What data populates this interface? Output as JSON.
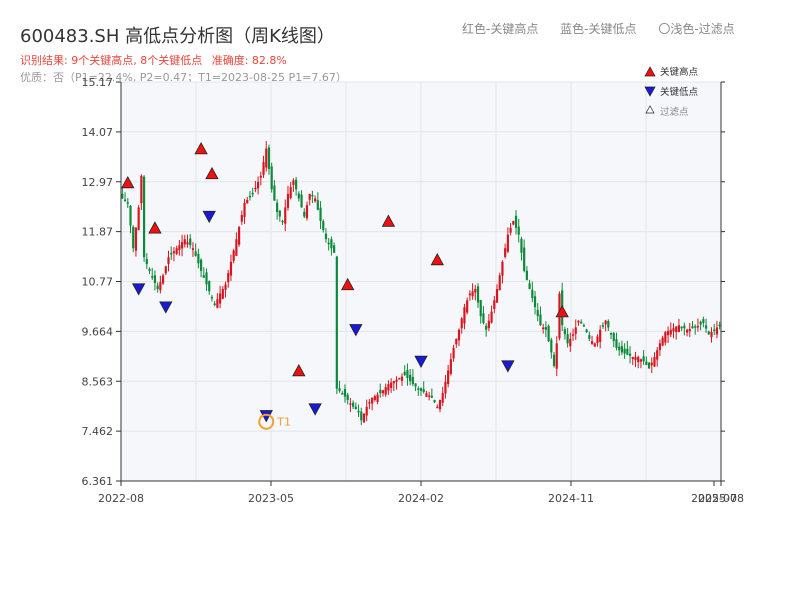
{
  "header": {
    "title": "600483.SH 高低点分析图（周K线图）",
    "legend_high": "红色-关键高点",
    "legend_low": "蓝色-关键低点",
    "legend_filter": "〇浅色-过滤点",
    "result": "识别结果: 9个关键高点, 8个关键低点",
    "accuracy": "准确度: 82.8%",
    "quality": "优质：否（P1=22.4%, P2=0.47；T1=2023-08-25 P1=7.67）"
  },
  "colors": {
    "up": "#d9161f",
    "down": "#0c8a3a",
    "high_marker": "#ee1111",
    "low_marker": "#1a1ad6",
    "annotation": "#f0a030",
    "plot_bg": "#f5f7fa",
    "grid": "#e2e6ea"
  },
  "chart_data": {
    "type": "candlestick",
    "ylim": [
      6.361,
      15.17
    ],
    "yticks": [
      "15.17",
      "14.07",
      "12.97",
      "11.87",
      "10.77",
      "9.664",
      "8.563",
      "7.462",
      "6.361"
    ],
    "xticks": [
      "2022-08",
      "2023-05",
      "2024-02",
      "2024-11",
      "2025-07",
      "2025-08"
    ],
    "xrange": [
      "2022-08",
      "2025-08"
    ],
    "inner_legend": [
      "关键高点",
      "关键低点",
      "过滤点"
    ],
    "annotation_label": "T1",
    "close_path": [
      [
        0,
        12.6
      ],
      [
        2,
        12.5
      ],
      [
        4,
        11.5
      ],
      [
        6,
        12.4
      ],
      [
        7,
        13.1
      ],
      [
        8,
        11.3
      ],
      [
        10,
        11.0
      ],
      [
        13,
        10.6
      ],
      [
        15,
        10.9
      ],
      [
        17,
        11.3
      ],
      [
        20,
        11.5
      ],
      [
        23,
        11.7
      ],
      [
        26,
        11.5
      ],
      [
        29,
        11.0
      ],
      [
        31,
        10.7
      ],
      [
        33,
        10.4
      ],
      [
        34,
        10.25
      ],
      [
        36,
        10.5
      ],
      [
        38,
        10.7
      ],
      [
        40,
        11.2
      ],
      [
        42,
        11.7
      ],
      [
        45,
        12.5
      ],
      [
        48,
        12.7
      ],
      [
        51,
        13.1
      ],
      [
        53,
        13.7
      ],
      [
        55,
        12.8
      ],
      [
        57,
        12.3
      ],
      [
        59,
        12.1
      ],
      [
        61,
        12.7
      ],
      [
        63,
        13.0
      ],
      [
        65,
        12.6
      ],
      [
        67,
        12.2
      ],
      [
        69,
        12.7
      ],
      [
        71,
        12.6
      ],
      [
        73,
        12.1
      ],
      [
        75,
        11.7
      ],
      [
        77,
        11.5
      ],
      [
        78,
        11.4
      ],
      [
        79,
        8.4
      ],
      [
        81,
        8.3
      ],
      [
        83,
        8.15
      ],
      [
        85,
        8.0
      ],
      [
        87,
        7.9
      ],
      [
        88,
        7.7
      ],
      [
        90,
        8.0
      ],
      [
        92,
        8.2
      ],
      [
        95,
        8.3
      ],
      [
        98,
        8.5
      ],
      [
        101,
        8.6
      ],
      [
        104,
        8.7
      ],
      [
        107,
        8.5
      ],
      [
        110,
        8.35
      ],
      [
        112,
        8.3
      ],
      [
        114,
        8.2
      ],
      [
        116,
        8.0
      ],
      [
        118,
        8.3
      ],
      [
        120,
        8.8
      ],
      [
        122,
        9.3
      ],
      [
        124,
        9.7
      ],
      [
        126,
        10.2
      ],
      [
        128,
        10.5
      ],
      [
        130,
        10.6
      ],
      [
        132,
        10.0
      ],
      [
        134,
        9.7
      ],
      [
        136,
        10.1
      ],
      [
        138,
        10.6
      ],
      [
        140,
        11.2
      ],
      [
        142,
        11.8
      ],
      [
        144,
        12.1
      ],
      [
        146,
        11.8
      ],
      [
        148,
        11.0
      ],
      [
        150,
        10.6
      ],
      [
        152,
        10.2
      ],
      [
        154,
        9.8
      ],
      [
        156,
        9.7
      ],
      [
        158,
        9.2
      ],
      [
        159,
        8.9
      ],
      [
        160,
        9.4
      ],
      [
        161,
        10.5
      ],
      [
        162,
        9.8
      ],
      [
        164,
        9.4
      ],
      [
        166,
        9.6
      ],
      [
        168,
        9.9
      ],
      [
        170,
        9.8
      ],
      [
        172,
        9.5
      ],
      [
        174,
        9.4
      ],
      [
        176,
        9.7
      ],
      [
        178,
        9.9
      ],
      [
        180,
        9.6
      ],
      [
        182,
        9.3
      ],
      [
        184,
        9.2
      ],
      [
        186,
        9.15
      ],
      [
        188,
        9.1
      ],
      [
        190,
        9.1
      ],
      [
        192,
        9.0
      ],
      [
        194,
        8.85
      ],
      [
        196,
        9.1
      ],
      [
        198,
        9.4
      ],
      [
        200,
        9.65
      ],
      [
        202,
        9.7
      ],
      [
        205,
        9.8
      ],
      [
        208,
        9.7
      ],
      [
        211,
        9.75
      ],
      [
        214,
        9.85
      ],
      [
        216,
        9.6
      ],
      [
        218,
        9.7
      ],
      [
        220,
        9.8
      ]
    ],
    "key_highs": [
      {
        "i": 2,
        "price": 12.9
      },
      {
        "i": 12,
        "price": 11.9
      },
      {
        "i": 29,
        "price": 13.65
      },
      {
        "i": 33,
        "price": 13.1
      },
      {
        "i": 65,
        "price": 8.75
      },
      {
        "i": 83,
        "price": 10.65
      },
      {
        "i": 98,
        "price": 12.05
      },
      {
        "i": 116,
        "price": 11.2
      },
      {
        "i": 162,
        "price": 10.05
      }
    ],
    "key_lows": [
      {
        "i": 6,
        "price": 10.65
      },
      {
        "i": 16,
        "price": 10.25
      },
      {
        "i": 32,
        "price": 12.25
      },
      {
        "i": 53,
        "price": 7.85
      },
      {
        "i": 71,
        "price": 8.0
      },
      {
        "i": 86,
        "price": 9.75
      },
      {
        "i": 110,
        "price": 9.05
      },
      {
        "i": 142,
        "price": 8.95
      }
    ],
    "t1_point": {
      "i": 53,
      "price": 7.67
    }
  }
}
